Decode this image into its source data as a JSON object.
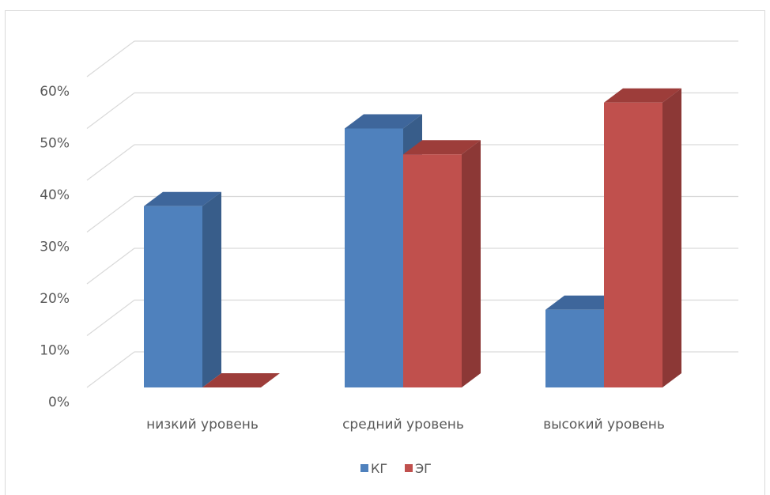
{
  "chart_data": {
    "type": "bar",
    "style": "3d-clustered-column",
    "categories": [
      "низкий уровень",
      "средний уровень",
      "высокий уровень"
    ],
    "series": [
      {
        "name": "КГ",
        "values": [
          35,
          50,
          15
        ],
        "color": "#4f81bd",
        "side_color": "#385d8a",
        "top_color": "#3e669b"
      },
      {
        "name": "ЭГ",
        "values": [
          0,
          45,
          55
        ],
        "color": "#c0504d",
        "side_color": "#8c3836",
        "top_color": "#9d3d3a"
      }
    ],
    "y_ticks": [
      "0%",
      "10%",
      "20%",
      "30%",
      "40%",
      "50%",
      "60%"
    ],
    "ylim": [
      0,
      60
    ],
    "grid": true,
    "legend_position": "bottom"
  }
}
